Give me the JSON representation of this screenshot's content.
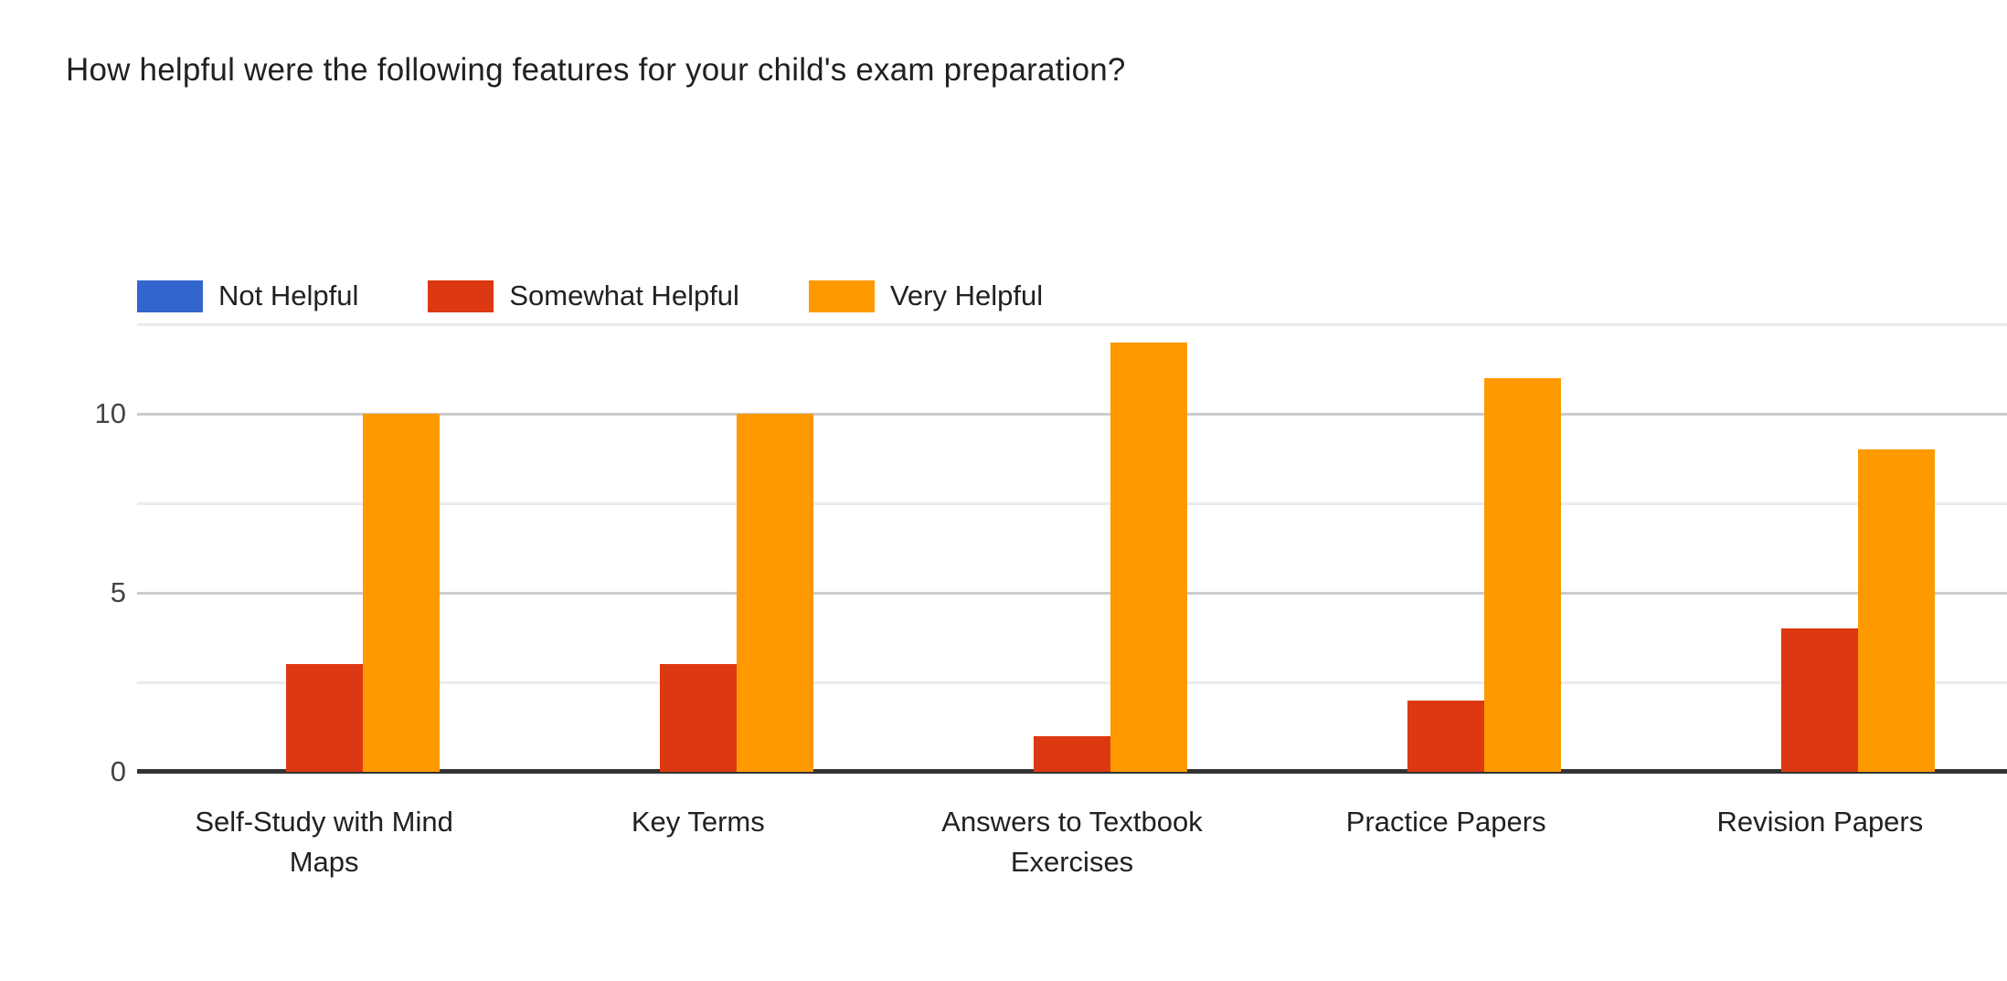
{
  "chart_data": {
    "type": "bar",
    "title": "How helpful were the following features for your child's exam preparation?",
    "xlabel": "",
    "ylabel": "",
    "categories": [
      "Self-Study with Mind Maps",
      "Key Terms",
      "Answers to Textbook Exercises",
      "Practice Papers",
      "Revision Papers"
    ],
    "series": [
      {
        "name": "Not Helpful",
        "color": "#3366CC",
        "values": [
          0,
          0,
          0,
          0,
          0
        ]
      },
      {
        "name": "Somewhat Helpful",
        "color": "#DC3912",
        "values": [
          3,
          3,
          1,
          2,
          4
        ]
      },
      {
        "name": "Very Helpful",
        "color": "#FF9900",
        "values": [
          10,
          10,
          12,
          11,
          9
        ]
      }
    ],
    "ylim": [
      0,
      12.5
    ],
    "yticks": [
      0,
      5,
      10
    ],
    "gridlines": {
      "major": [
        5,
        10
      ],
      "minor": [
        2.5,
        7.5,
        12.5
      ]
    },
    "legend_position": "top",
    "grid": true,
    "colors": {
      "axis_line": "#333333",
      "major_gridline": "#cccccc",
      "minor_gridline": "#ebebeb",
      "tick_label": "#444444",
      "text": "#212121"
    }
  }
}
